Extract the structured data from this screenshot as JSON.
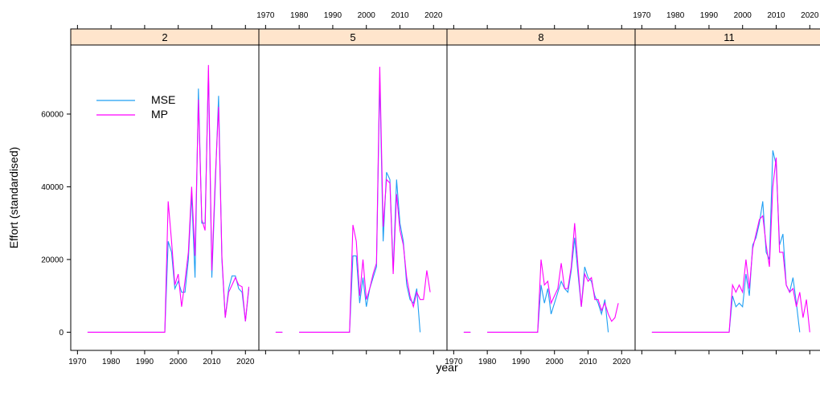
{
  "chart_data": {
    "type": "line",
    "xlabel": "year",
    "ylabel": "Effort (standardised)",
    "xlim": [
      1968,
      2024
    ],
    "ylim": [
      -5000,
      79000
    ],
    "x_ticks": [
      1970,
      1980,
      1990,
      2000,
      2010,
      2020
    ],
    "y_ticks": [
      0,
      20000,
      40000,
      60000
    ],
    "legend": {
      "placement": "top-left of first panel",
      "entries": [
        "MSE",
        "MP"
      ]
    },
    "colors": {
      "MSE": "#1f9ff3",
      "MP": "#ff00ff",
      "strip": "#ffe5cc"
    },
    "panels": [
      {
        "label": "2",
        "series": [
          {
            "name": "MSE",
            "x": [
              1973,
              1996,
              1997,
              1998,
              1999,
              2000,
              2001,
              2002,
              2003,
              2004,
              2005,
              2006,
              2007,
              2008,
              2009,
              2010,
              2011,
              2012,
              2013,
              2014,
              2015,
              2016,
              2017,
              2018,
              2019,
              2020,
              2021
            ],
            "values": [
              0,
              0,
              25000,
              22000,
              12000,
              14000,
              11000,
              11000,
              20000,
              38000,
              15000,
              67000,
              30000,
              30000,
              72000,
              15000,
              40000,
              65000,
              20000,
              4000,
              12000,
              15500,
              15500,
              12000,
              11000,
              3000,
              12000
            ]
          },
          {
            "name": "MP",
            "x": [
              1973,
              1996,
              1997,
              1998,
              1999,
              2000,
              2001,
              2002,
              2003,
              2004,
              2005,
              2006,
              2007,
              2008,
              2009,
              2010,
              2011,
              2012,
              2013,
              2014,
              2015,
              2016,
              2017,
              2018,
              2019,
              2020,
              2021
            ],
            "values": [
              0,
              0,
              36000,
              25000,
              13000,
              16000,
              7000,
              14000,
              22000,
              40000,
              21000,
              64000,
              31000,
              28000,
              73500,
              17000,
              42000,
              62000,
              21000,
              4000,
              11000,
              13000,
              15000,
              13000,
              12500,
              3000,
              12500
            ]
          }
        ]
      },
      {
        "label": "5",
        "series": [
          {
            "name": "MSE",
            "x": [
              1973,
              1975,
              1978,
              1980,
              1995,
              1996,
              1997,
              1998,
              1999,
              2000,
              2001,
              2002,
              2003,
              2004,
              2005,
              2006,
              2007,
              2008,
              2009,
              2010,
              2011,
              2012,
              2013,
              2014,
              2015,
              2016,
              2017,
              2018,
              2019,
              2020,
              2021
            ],
            "values": [
              0,
              0,
              null,
              0,
              0,
              21000,
              21000,
              8000,
              15000,
              7000,
              12000,
              15000,
              18000,
              70000,
              25000,
              44000,
              42000,
              17000,
              42000,
              30000,
              25000,
              13000,
              9000,
              8000,
              12000,
              0,
              null,
              null,
              null,
              null,
              null
            ]
          },
          {
            "name": "MP",
            "x": [
              1973,
              1975,
              1978,
              1980,
              1995,
              1996,
              1997,
              1998,
              1999,
              2000,
              2001,
              2002,
              2003,
              2004,
              2005,
              2006,
              2007,
              2008,
              2009,
              2010,
              2011,
              2012,
              2013,
              2014,
              2015,
              2016,
              2017,
              2018,
              2019,
              2020,
              2021
            ],
            "values": [
              0,
              0,
              null,
              0,
              0,
              29500,
              25000,
              10000,
              20000,
              9000,
              12000,
              16000,
              19000,
              73000,
              29000,
              42000,
              41000,
              16000,
              38000,
              28000,
              24000,
              15000,
              10000,
              7000,
              11000,
              9000,
              9000,
              17000,
              11000,
              null,
              null
            ]
          }
        ]
      },
      {
        "label": "8",
        "series": [
          {
            "name": "MSE",
            "x": [
              1973,
              1975,
              1978,
              1980,
              1995,
              1996,
              1997,
              1998,
              1999,
              2000,
              2001,
              2002,
              2003,
              2004,
              2005,
              2006,
              2007,
              2008,
              2009,
              2010,
              2011,
              2012,
              2013,
              2014,
              2015,
              2016,
              2017,
              2018,
              2019,
              2020,
              2021
            ],
            "values": [
              0,
              0,
              null,
              0,
              0,
              13000,
              8000,
              12000,
              5000,
              8000,
              11000,
              14000,
              12000,
              11000,
              17000,
              26000,
              16000,
              7000,
              18000,
              15000,
              14000,
              10000,
              8000,
              5000,
              9000,
              0,
              null,
              null,
              null,
              null,
              null
            ]
          },
          {
            "name": "MP",
            "x": [
              1973,
              1975,
              1978,
              1980,
              1995,
              1996,
              1997,
              1998,
              1999,
              2000,
              2001,
              2002,
              2003,
              2004,
              2005,
              2006,
              2007,
              2008,
              2009,
              2010,
              2011,
              2012,
              2013,
              2014,
              2015,
              2016,
              2017,
              2018,
              2019,
              2020,
              2021
            ],
            "values": [
              0,
              0,
              null,
              0,
              0,
              20000,
              13000,
              14000,
              8000,
              10000,
              12000,
              19000,
              12000,
              12000,
              18000,
              30000,
              18000,
              7000,
              16000,
              14000,
              15000,
              9000,
              9000,
              6000,
              8000,
              5000,
              3000,
              4000,
              8000,
              null,
              null
            ]
          }
        ]
      },
      {
        "label": "11",
        "series": [
          {
            "name": "MSE",
            "x": [
              1973,
              1996,
              1997,
              1998,
              1999,
              2000,
              2001,
              2002,
              2003,
              2004,
              2005,
              2006,
              2007,
              2008,
              2009,
              2010,
              2011,
              2012,
              2013,
              2014,
              2015,
              2016,
              2017,
              2018,
              2019,
              2020,
              2021
            ],
            "values": [
              0,
              0,
              10000,
              7000,
              8000,
              7000,
              16000,
              10000,
              24000,
              26000,
              30000,
              36000,
              22000,
              20000,
              50000,
              46000,
              24000,
              27000,
              13000,
              11000,
              15000,
              8000,
              0,
              null,
              null,
              null,
              null
            ]
          },
          {
            "name": "MP",
            "x": [
              1973,
              1996,
              1997,
              1998,
              1999,
              2000,
              2001,
              2002,
              2003,
              2004,
              2005,
              2006,
              2007,
              2008,
              2009,
              2010,
              2011,
              2012,
              2013,
              2014,
              2015,
              2016,
              2017,
              2018,
              2019,
              2020,
              2021
            ],
            "values": [
              0,
              0,
              13000,
              11000,
              13000,
              11000,
              20000,
              12000,
              23000,
              27000,
              31000,
              32000,
              24000,
              18000,
              40000,
              48000,
              22000,
              22000,
              13000,
              11000,
              12000,
              7000,
              11000,
              4000,
              9000,
              0,
              null
            ]
          }
        ]
      }
    ]
  }
}
